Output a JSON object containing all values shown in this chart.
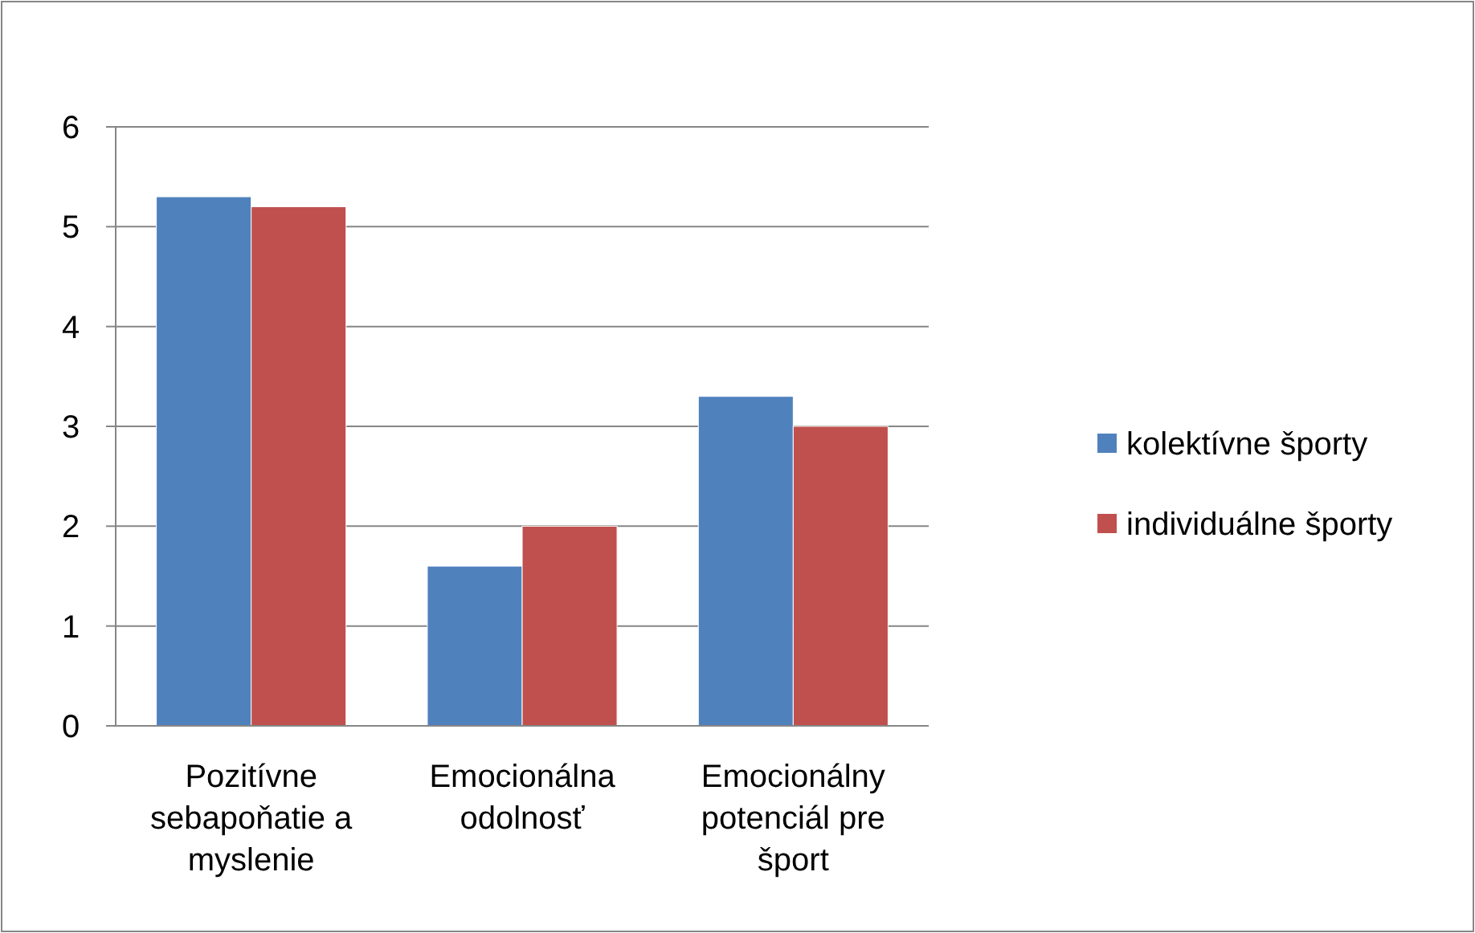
{
  "chart_data": {
    "type": "bar",
    "categories": [
      "Pozitívne sebapoňatie a myslenie",
      "Emocionálna odolnosť",
      "Emocionálny potenciál pre šport"
    ],
    "series": [
      {
        "name": "kolektívne športy",
        "color": "#4f81bd",
        "values": [
          5.3,
          1.6,
          3.3
        ]
      },
      {
        "name": "individuálne športy",
        "color": "#c0504d",
        "values": [
          5.2,
          2.0,
          3.0
        ]
      }
    ],
    "ylim": [
      0,
      6
    ],
    "yticks": [
      0,
      1,
      2,
      3,
      4,
      5,
      6
    ],
    "grid": "y",
    "legend": "right"
  }
}
